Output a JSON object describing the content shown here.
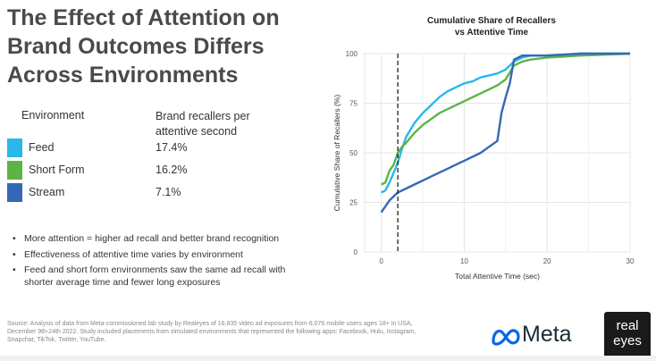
{
  "title": {
    "line1": "The Effect of Attention on",
    "line2": "Brand Outcomes Differs",
    "line3": "Across Environments"
  },
  "table": {
    "col1": "Environment",
    "col2": "Brand recallers per attentive second",
    "rows": [
      {
        "name": "Feed",
        "value": "17.4%",
        "color": "#2ab7ea"
      },
      {
        "name": "Short Form",
        "value": "16.2%",
        "color": "#5db446"
      },
      {
        "name": "Stream",
        "value": "7.1%",
        "color": "#3468b6"
      }
    ]
  },
  "bullets": [
    "More attention = higher ad recall and better brand recognition",
    "Effectiveness of attentive time varies by environment",
    "Feed and short form environments saw the same ad recall with shorter average time and fewer long exposures"
  ],
  "source": "Source: Analysis of data from Meta-commissioned lab study by Realeyes of 16,835 video ad exposures from 6,076 mobile users ages 18+ in USA, December 9th-24th 2022. Study included placements from simulated environments that represented the following apps: Facebook, Hulu, Instagram, Snapchat, TikTok, Twitter, YouTube.",
  "logos": {
    "meta": "Meta",
    "realeyes_line1": "real",
    "realeyes_line2": "eyes"
  },
  "chart_data": {
    "type": "line",
    "title_line1": "Cumulative Share of Recallers",
    "title_line2": "vs Attentive Time",
    "xlabel": "Total Attentive Time (sec)",
    "ylabel": "Cumulative Share of Recallers (%)",
    "xlim": [
      -2,
      30
    ],
    "ylim": [
      0,
      100
    ],
    "xticks": [
      0,
      10,
      20,
      30
    ],
    "yticks": [
      0,
      25,
      50,
      75,
      100
    ],
    "grid": true,
    "vline_x": 2,
    "series": [
      {
        "name": "Feed",
        "color": "#2ab7ea",
        "x": [
          0,
          0.5,
          1,
          1.5,
          2,
          2.5,
          3,
          4,
          5,
          6,
          7,
          8,
          9,
          10,
          11,
          12,
          13,
          14,
          15,
          16,
          17,
          18,
          20,
          24,
          30
        ],
        "y": [
          30,
          31,
          35,
          40,
          45,
          52,
          58,
          65,
          70,
          74,
          78,
          81,
          83,
          85,
          86,
          88,
          89,
          90,
          92,
          96,
          98,
          99,
          99,
          100,
          100
        ]
      },
      {
        "name": "Short Form",
        "color": "#5db446",
        "x": [
          0,
          0.5,
          1,
          1.5,
          2,
          2.5,
          3,
          4,
          5,
          6,
          7,
          8,
          9,
          10,
          11,
          12,
          13,
          14,
          15,
          16,
          17,
          18,
          20,
          24,
          30
        ],
        "y": [
          34,
          35,
          41,
          44,
          50,
          53,
          55,
          60,
          64,
          67,
          70,
          72,
          74,
          76,
          78,
          80,
          82,
          84,
          87,
          94,
          96,
          97,
          98,
          99,
          100
        ]
      },
      {
        "name": "Stream",
        "color": "#3468b6",
        "x": [
          0,
          0.5,
          1,
          1.5,
          2,
          2.5,
          3,
          4,
          5,
          6,
          7,
          8,
          9,
          10,
          11,
          12,
          13,
          14,
          14.5,
          15,
          15.5,
          16,
          16.5,
          17,
          18,
          20,
          24,
          30
        ],
        "y": [
          20,
          23,
          26,
          28,
          30,
          31,
          32,
          34,
          36,
          38,
          40,
          42,
          44,
          46,
          48,
          50,
          53,
          56,
          70,
          78,
          85,
          97,
          98,
          99,
          99,
          99,
          100,
          100
        ]
      }
    ]
  }
}
